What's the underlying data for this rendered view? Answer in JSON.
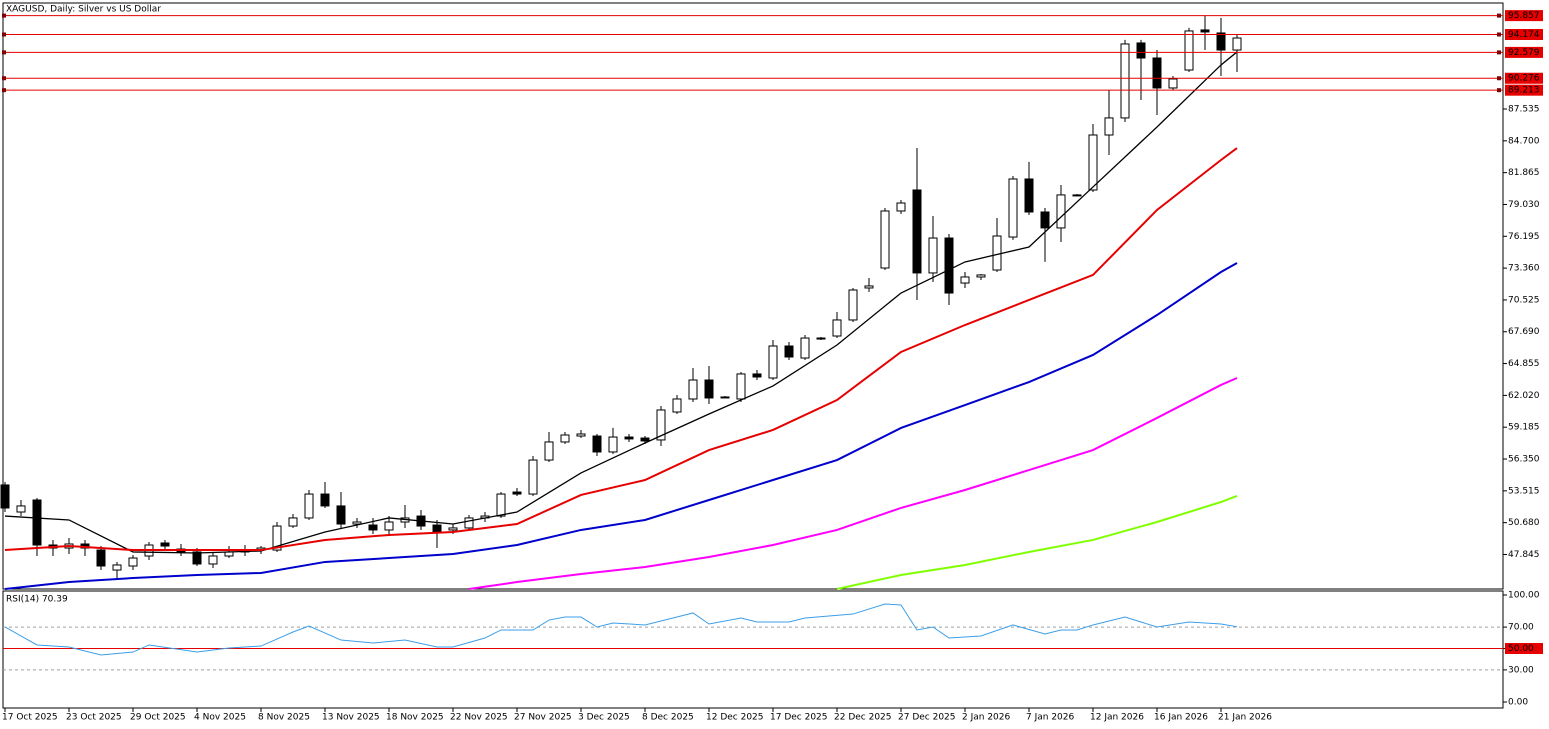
{
  "chart_data": [
    {
      "type": "candlestick",
      "title": "XAGUSD, Daily:  Silver vs US Dollar",
      "categories": [
        "17 Oct 2025",
        null,
        null,
        null,
        "23 Oct 2025",
        null,
        null,
        null,
        "29 Oct 2025",
        null,
        null,
        null,
        "4 Nov 2025",
        null,
        null,
        null,
        "8 Nov 2025",
        null,
        null,
        null,
        "13 Nov 2025",
        null,
        null,
        null,
        "18 Nov 2025",
        null,
        null,
        null,
        "22 Nov 2025",
        null,
        null,
        null,
        "27 Nov 2025",
        null,
        null,
        null,
        "3 Dec 2025",
        null,
        null,
        null,
        "8 Dec 2025",
        null,
        null,
        null,
        "12 Dec 2025",
        null,
        null,
        null,
        "17 Dec 2025",
        null,
        null,
        null,
        "22 Dec 2025",
        null,
        null,
        null,
        "27 Dec 2025",
        null,
        null,
        null,
        "2 Jan 2026",
        null,
        null,
        null,
        "7 Jan 2026",
        null,
        null,
        null,
        "12 Jan 2026",
        null,
        null,
        null,
        "16 Jan 2026",
        null,
        null,
        null,
        "21 Jan 2026",
        null
      ],
      "open": [
        54.04,
        51.63,
        52.7,
        48.69,
        48.42,
        48.78,
        48.24,
        46.46,
        46.82,
        47.71,
        48.87,
        48.33,
        48.07,
        47.0,
        47.71,
        48.07,
        48.24,
        48.24,
        50.38,
        51.1,
        53.23,
        52.17,
        50.56,
        50.47,
        50.03,
        50.74,
        51.27,
        50.47,
        50.03,
        50.21,
        51.1,
        51.27,
        53.41,
        53.23,
        56.26,
        57.87,
        58.4,
        58.4,
        56.98,
        58.31,
        58.22,
        58.05,
        60.54,
        61.7,
        63.39,
        61.88,
        61.7,
        63.93,
        63.57,
        66.42,
        65.35,
        67.13,
        67.31,
        68.74,
        71.59,
        73.37,
        78.45,
        80.32,
        72.93,
        76.04,
        72.03,
        72.57,
        73.19,
        76.13,
        81.3,
        78.36,
        76.94,
        79.88,
        80.32,
        85.22,
        86.74,
        93.42,
        92.08,
        89.41,
        91.01,
        94.58,
        94.31,
        92.79
      ],
      "high": [
        54.3,
        52.7,
        52.88,
        49.14,
        49.31,
        49.14,
        48.6,
        47.18,
        47.8,
        48.96,
        49.14,
        48.78,
        48.42,
        48.07,
        48.6,
        48.69,
        48.6,
        50.74,
        51.45,
        53.59,
        54.3,
        53.41,
        51.1,
        51.1,
        51.27,
        52.25,
        51.81,
        50.92,
        50.56,
        51.36,
        51.63,
        53.41,
        53.77,
        56.62,
        58.76,
        58.76,
        58.94,
        58.58,
        59.12,
        58.58,
        58.4,
        61.08,
        62.06,
        64.46,
        64.64,
        61.97,
        64.1,
        64.28,
        66.96,
        66.78,
        67.4,
        67.22,
        69.45,
        71.59,
        72.48,
        78.72,
        79.43,
        84.06,
        78.0,
        76.4,
        73.01,
        72.84,
        77.83,
        81.57,
        82.82,
        78.72,
        80.77,
        79.96,
        86.2,
        89.23,
        93.69,
        93.69,
        92.79,
        90.48,
        94.76,
        95.86,
        95.65,
        94.22
      ],
      "low": [
        51.63,
        51.27,
        47.71,
        47.71,
        47.89,
        47.71,
        46.46,
        45.75,
        46.46,
        47.35,
        48.24,
        47.71,
        46.82,
        46.64,
        47.53,
        47.71,
        47.89,
        48.07,
        50.21,
        50.92,
        51.99,
        50.21,
        50.21,
        49.67,
        49.67,
        50.21,
        50.03,
        48.42,
        49.67,
        50.03,
        50.74,
        51.1,
        53.06,
        53.06,
        56.09,
        57.69,
        58.22,
        56.62,
        56.8,
        57.87,
        57.69,
        57.51,
        60.36,
        61.43,
        61.25,
        61.79,
        61.43,
        63.39,
        63.39,
        65.17,
        65.17,
        66.96,
        67.13,
        68.56,
        71.23,
        73.19,
        78.18,
        70.52,
        72.12,
        70.07,
        71.59,
        72.3,
        73.01,
        75.87,
        78.09,
        73.91,
        75.69,
        79.79,
        80.14,
        83.44,
        86.38,
        88.34,
        87.0,
        89.23,
        90.83,
        92.79,
        90.48,
        90.83
      ],
      "close": [
        51.99,
        52.17,
        48.69,
        48.42,
        48.78,
        48.42,
        46.82,
        46.91,
        47.53,
        48.69,
        48.6,
        48.07,
        47.0,
        47.71,
        48.07,
        48.24,
        48.42,
        50.38,
        51.1,
        53.23,
        52.17,
        50.56,
        50.74,
        50.03,
        50.74,
        51.1,
        50.38,
        49.85,
        50.21,
        51.1,
        51.27,
        53.23,
        53.23,
        56.26,
        57.87,
        58.49,
        58.58,
        56.98,
        58.31,
        58.14,
        57.96,
        60.72,
        61.7,
        63.39,
        61.79,
        61.88,
        63.93,
        63.66,
        66.42,
        65.44,
        67.13,
        67.13,
        68.74,
        71.41,
        71.77,
        78.45,
        79.16,
        72.93,
        76.04,
        71.14,
        72.57,
        72.75,
        76.22,
        81.3,
        78.36,
        76.94,
        79.88,
        79.88,
        85.22,
        86.74,
        93.33,
        92.08,
        89.41,
        90.21,
        94.49,
        94.4,
        92.79,
        93.86
      ],
      "bull_color": "#ffffff",
      "bear_color": "#000000",
      "series": [
        {
          "color": "#000000",
          "x": [
            0,
            4,
            8,
            12,
            16,
            20,
            24,
            28,
            32,
            36,
            40,
            44,
            48,
            52,
            56,
            60,
            64,
            68,
            72,
            76,
            77
          ],
          "values": [
            51.27,
            50.92,
            48.07,
            47.98,
            48.16,
            49.85,
            51.1,
            50.56,
            51.63,
            55.11,
            57.78,
            60.36,
            62.86,
            66.51,
            71.14,
            73.91,
            75.24,
            80.59,
            85.93,
            91.46,
            92.62
          ]
        },
        {
          "color": "#e60000",
          "x": [
            0,
            4,
            8,
            12,
            16,
            20,
            24,
            28,
            32,
            36,
            40,
            44,
            48,
            52,
            56,
            60,
            64,
            68,
            72,
            76,
            77
          ],
          "values": [
            48.24,
            48.6,
            48.24,
            48.24,
            48.24,
            49.14,
            49.58,
            49.85,
            50.56,
            53.15,
            54.48,
            57.15,
            58.94,
            61.61,
            65.89,
            68.29,
            70.52,
            72.75,
            78.54,
            82.99,
            84.06
          ]
        },
        {
          "color": "#0000cc",
          "x": [
            0,
            4,
            8,
            12,
            16,
            20,
            24,
            28,
            32,
            36,
            40,
            44,
            48,
            52,
            56,
            60,
            64,
            68,
            72,
            76,
            77
          ],
          "values": [
            44.77,
            45.39,
            45.75,
            46.02,
            46.2,
            47.18,
            47.53,
            47.89,
            48.69,
            50.03,
            50.92,
            52.7,
            54.48,
            56.26,
            59.12,
            61.16,
            63.21,
            65.62,
            69.18,
            73.01,
            73.82
          ]
        },
        {
          "color": "#ff00ff",
          "x": [
            29,
            32,
            36,
            40,
            44,
            48,
            52,
            56,
            60,
            64,
            68,
            72,
            76,
            77
          ],
          "values": [
            44.77,
            45.39,
            46.11,
            46.73,
            47.62,
            48.69,
            50.03,
            51.99,
            53.59,
            55.37,
            57.15,
            60.01,
            62.95,
            63.57
          ]
        },
        {
          "color": "#80ff00",
          "x": [
            52,
            56,
            60,
            64,
            68,
            72,
            76,
            77
          ],
          "values": [
            44.77,
            46.02,
            46.91,
            48.07,
            49.14,
            50.74,
            52.52,
            53.06
          ]
        }
      ],
      "levels": {
        "color": "#e60000",
        "values": [
          95.857,
          94.174,
          92.579,
          90.276,
          89.213
        ]
      },
      "ylim": [
        44.77,
        96.98
      ],
      "yticks": [
        47.845,
        {
          "value": 50.68,
          "label": "50.680"
        },
        53.515,
        {
          "value": 56.35,
          "label": "56.350"
        },
        59.185,
        {
          "value": 62.02,
          "label": "62.020"
        },
        64.855,
        {
          "value": 67.69,
          "label": "67.690"
        },
        70.525,
        {
          "value": 73.36,
          "label": "73.360"
        },
        76.195,
        {
          "value": 79.03,
          "label": "79.030"
        },
        81.865,
        {
          "value": 84.7,
          "label": "84.700"
        },
        87.535
      ]
    },
    {
      "type": "line",
      "title": "RSI(14) 70.39",
      "color": "#3c9ee8",
      "x": [
        0,
        2,
        4,
        6,
        8,
        9,
        12,
        14,
        16,
        18,
        19,
        21,
        23,
        25,
        27,
        28,
        30,
        31,
        33,
        34,
        35,
        36,
        37,
        38,
        40,
        42,
        43,
        44,
        46,
        47,
        49,
        50,
        53,
        55,
        56,
        57,
        58,
        59,
        61,
        63,
        65,
        66,
        67,
        68,
        70,
        72,
        74,
        76,
        77
      ],
      "values": [
        70.1,
        53.3,
        51.4,
        43.9,
        46.7,
        53.3,
        46.7,
        50.5,
        52.3,
        65.4,
        71.0,
        57.9,
        55.1,
        57.9,
        51.4,
        51.4,
        59.8,
        67.3,
        67.3,
        76.6,
        79.4,
        79.4,
        70.1,
        73.8,
        72.0,
        79.4,
        83.2,
        72.9,
        78.5,
        74.8,
        74.8,
        78.5,
        82.2,
        91.6,
        90.7,
        67.3,
        70.1,
        59.8,
        61.7,
        72.0,
        63.6,
        67.3,
        67.3,
        72.0,
        79.4,
        70.1,
        74.8,
        72.9,
        70.39
      ],
      "ylim": [
        0,
        100
      ],
      "yticks": [
        {
          "value": 100,
          "label": "100.00"
        },
        {
          "value": 70,
          "label": "70.00"
        },
        {
          "value": 50,
          "label": "50.00"
        },
        {
          "value": 30,
          "label": "30.00"
        },
        {
          "value": 0,
          "label": "0.00"
        }
      ],
      "hlines": [
        {
          "value": 70,
          "color": "#a0a0a0",
          "dashed": true
        },
        {
          "value": 50,
          "color": "#e60000",
          "dashed": false
        },
        {
          "value": 30,
          "color": "#a0a0a0",
          "dashed": true
        }
      ]
    }
  ]
}
